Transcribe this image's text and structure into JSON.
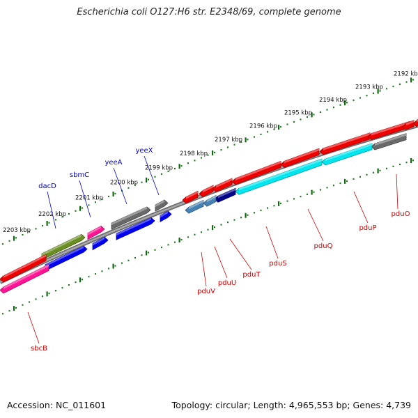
{
  "title": "Escherichia coli O127:H6 str. E2348/69, complete genome",
  "footer": {
    "accession": "Accession: NC_011601",
    "summary": "Topology: circular; Length: 4,965,553 bp; Genes: 4,739"
  },
  "colors": {
    "backbone": "#8c8c8c",
    "tick": "#1a7a1a",
    "label_forward": "#0000cc",
    "label_reverse": "#cc0000"
  },
  "scale_ticks": [
    {
      "label": "2192 kbp"
    },
    {
      "label": "2193 kbp"
    },
    {
      "label": "2194 kbp"
    },
    {
      "label": "2195 kbp"
    },
    {
      "label": "2196 kbp"
    },
    {
      "label": "2197 kbp"
    },
    {
      "label": "2198 kbp"
    },
    {
      "label": "2199 kbp"
    },
    {
      "label": "2200 kbp"
    },
    {
      "label": "2201 kbp"
    },
    {
      "label": "2202 kbp"
    },
    {
      "label": "2203 kbp"
    }
  ],
  "forward_genes": [
    {
      "name": "dacD",
      "color": "#6b8e23"
    },
    {
      "name": "sbmC",
      "color": "#ff1493"
    },
    {
      "name": "yeeA",
      "color": "#696969"
    },
    {
      "name": "yeeX",
      "color": "#696969"
    }
  ],
  "reverse_genes": [
    {
      "name": "pduO",
      "color": "#696969"
    },
    {
      "name": "pduP",
      "color": "#00e5ee"
    },
    {
      "name": "pduQ",
      "color": "#00e5ee"
    },
    {
      "name": "pduS",
      "color": "#00e5ee"
    },
    {
      "name": "pduT",
      "color": "#00008b"
    },
    {
      "name": "pduU",
      "color": "#4682b4"
    },
    {
      "name": "pduV",
      "color": "#4682b4"
    },
    {
      "name": "sbcB",
      "color": "#ff1493"
    }
  ]
}
